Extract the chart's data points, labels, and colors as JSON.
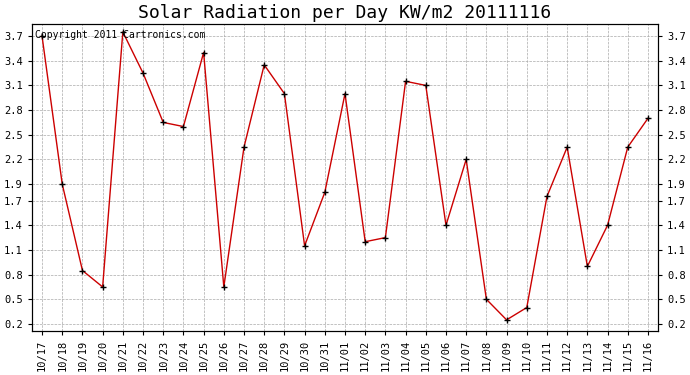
{
  "title": "Solar Radiation per Day KW/m2 20111116",
  "copyright_text": "Copyright 2011 Cartronics.com",
  "labels": [
    "10/17",
    "10/18",
    "10/19",
    "10/20",
    "10/21",
    "10/22",
    "10/23",
    "10/24",
    "10/25",
    "10/26",
    "10/27",
    "10/28",
    "10/29",
    "10/30",
    "10/31",
    "11/01",
    "11/02",
    "11/03",
    "11/04",
    "11/05",
    "11/06",
    "11/07",
    "11/08",
    "11/09",
    "11/10",
    "11/11",
    "11/12",
    "11/13",
    "11/14",
    "11/15",
    "11/16"
  ],
  "values": [
    3.7,
    1.9,
    0.85,
    0.65,
    3.75,
    3.25,
    2.65,
    2.6,
    3.5,
    0.65,
    2.35,
    3.35,
    3.0,
    1.15,
    1.8,
    3.0,
    1.2,
    1.25,
    3.15,
    3.1,
    1.4,
    2.2,
    0.5,
    0.25,
    0.4,
    1.75,
    2.35,
    0.9,
    1.4,
    2.35,
    2.7
  ],
  "line_color": "#cc0000",
  "marker": "+",
  "marker_color": "#000000",
  "background_color": "#ffffff",
  "grid_color": "#aaaaaa",
  "ylim": [
    0.12,
    3.85
  ],
  "yticks": [
    0.2,
    0.5,
    0.8,
    1.1,
    1.4,
    1.7,
    1.9,
    2.2,
    2.5,
    2.8,
    3.1,
    3.4,
    3.7
  ],
  "title_fontsize": 13,
  "label_fontsize": 7.5,
  "copyright_fontsize": 7
}
